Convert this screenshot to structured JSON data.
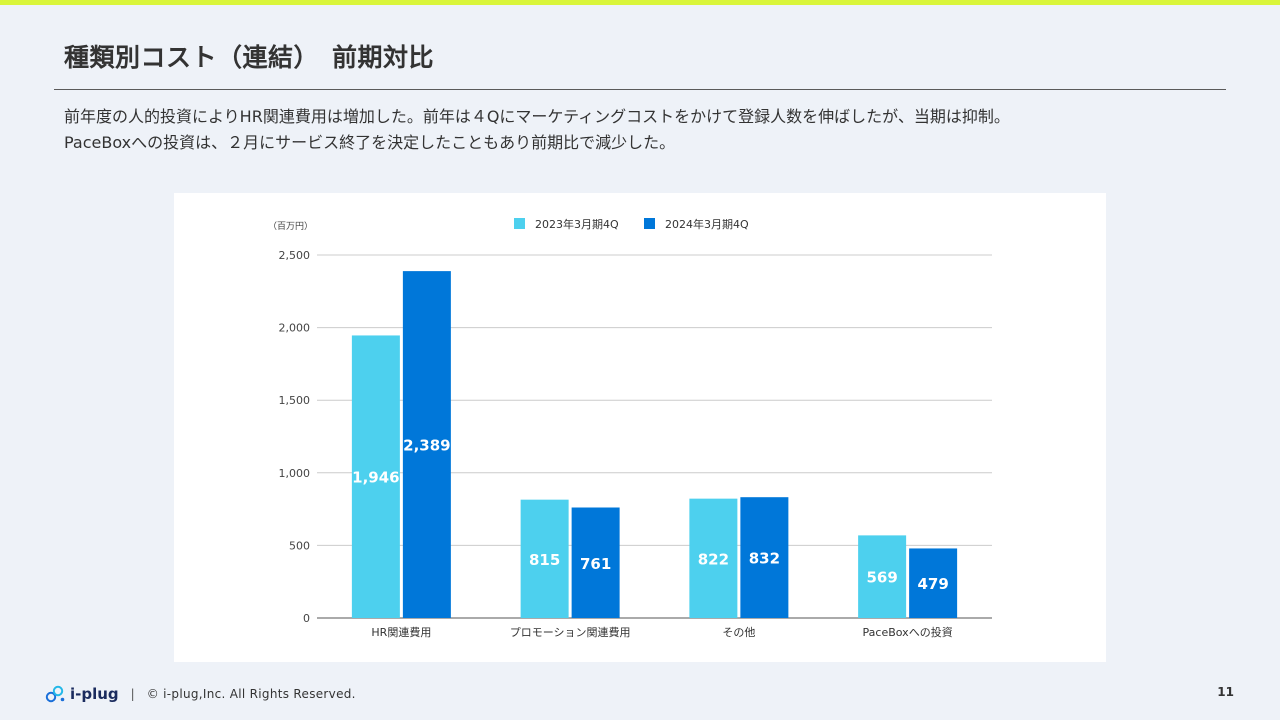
{
  "slide": {
    "title": "種類別コスト（連結）　前期対比",
    "description_lines": [
      "前年度の人的投資によりHR関連費用は増加した。前年は４Qにマーケティングコストをかけて登録人数を伸ばしたが、当期は抑制。",
      "PaceBoxへの投資は、２月にサービス終了を決定したこともあり前期比で減少した。"
    ],
    "page_number": "11"
  },
  "footer": {
    "logo_text": "i-plug",
    "separator": "|",
    "copyright": "© i-plug,Inc. All Rights Reserved."
  },
  "colors": {
    "accent_bar": "#d9f53a",
    "series_2023": "#4dd0ee",
    "series_2024": "#0077d9"
  },
  "chart_data": {
    "type": "bar",
    "unit_label": "（百万円）",
    "categories": [
      "HR関連費用",
      "プロモーション関連費用",
      "その他",
      "PaceBoxへの投資"
    ],
    "series": [
      {
        "name": "2023年3月期4Q",
        "values": [
          1946,
          815,
          822,
          569
        ]
      },
      {
        "name": "2024年3月期4Q",
        "values": [
          2389,
          761,
          832,
          479
        ]
      }
    ],
    "data_labels": [
      [
        "1,946",
        "815",
        "822",
        "569"
      ],
      [
        "2,389",
        "761",
        "832",
        "479"
      ]
    ],
    "y_ticks": [
      0,
      500,
      1000,
      1500,
      2000,
      2500
    ],
    "y_tick_labels": [
      "0",
      "500",
      "1,000",
      "1,500",
      "2,000",
      "2,500"
    ],
    "ylim": [
      0,
      2500
    ],
    "grid": true,
    "legend": "top-center"
  }
}
